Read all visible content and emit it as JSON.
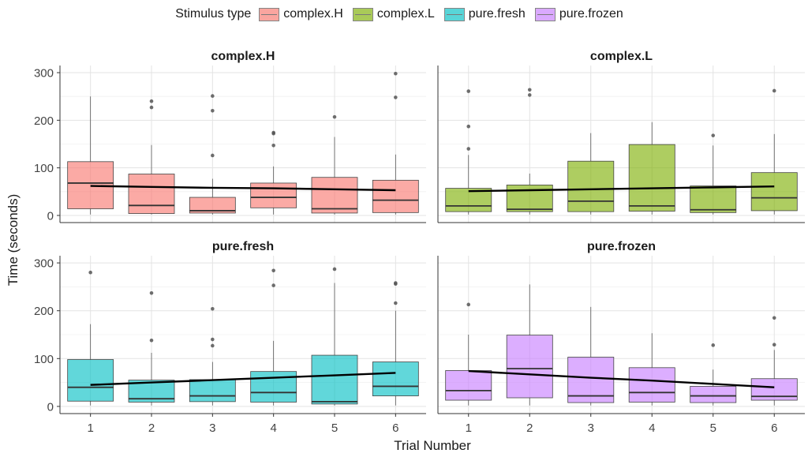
{
  "chart_data": {
    "type": "boxplot",
    "xlabel": "Trial Number",
    "ylabel": "Time (seconds)",
    "legend": {
      "title": "Stimulus type",
      "position": "top",
      "items": [
        {
          "name": "complex.H",
          "color": "#f8766d"
        },
        {
          "name": "complex.L",
          "color": "#7cae00"
        },
        {
          "name": "pure.fresh",
          "color": "#00bfc4"
        },
        {
          "name": "pure.frozen",
          "color": "#c77cff"
        }
      ]
    },
    "x": [
      1,
      2,
      3,
      4,
      5,
      6
    ],
    "ylim": [
      -15,
      315
    ],
    "yticks": [
      0,
      100,
      200,
      300
    ],
    "grid": true,
    "panels": [
      {
        "title": "complex.H",
        "color": "#f8766d",
        "boxes": [
          {
            "x": 1,
            "q1": 14,
            "median": 68,
            "q3": 113,
            "whisker_low": 2,
            "whisker_high": 250,
            "outliers": []
          },
          {
            "x": 2,
            "q1": 4,
            "median": 21,
            "q3": 87,
            "whisker_low": 2,
            "whisker_high": 148,
            "outliers": [
              227,
              240
            ]
          },
          {
            "x": 3,
            "q1": 5,
            "median": 10,
            "q3": 38,
            "whisker_low": 2,
            "whisker_high": 77,
            "outliers": [
              126,
              220,
              251
            ]
          },
          {
            "x": 4,
            "q1": 16,
            "median": 38,
            "q3": 68,
            "whisker_low": 2,
            "whisker_high": 103,
            "outliers": [
              147,
              172,
              174
            ]
          },
          {
            "x": 5,
            "q1": 5,
            "median": 14,
            "q3": 80,
            "whisker_low": 2,
            "whisker_high": 165,
            "outliers": [
              207
            ]
          },
          {
            "x": 6,
            "q1": 6,
            "median": 32,
            "q3": 74,
            "whisker_low": 2,
            "whisker_high": 128,
            "outliers": [
              248,
              298
            ]
          }
        ],
        "trend": [
          62,
          60,
          58,
          57,
          55,
          53
        ]
      },
      {
        "title": "complex.L",
        "color": "#7cae00",
        "boxes": [
          {
            "x": 1,
            "q1": 8,
            "median": 20,
            "q3": 57,
            "whisker_low": 2,
            "whisker_high": 127,
            "outliers": [
              140,
              187,
              261
            ]
          },
          {
            "x": 2,
            "q1": 8,
            "median": 13,
            "q3": 64,
            "whisker_low": 2,
            "whisker_high": 88,
            "outliers": [
              253,
              264
            ]
          },
          {
            "x": 3,
            "q1": 8,
            "median": 30,
            "q3": 114,
            "whisker_low": 2,
            "whisker_high": 173,
            "outliers": []
          },
          {
            "x": 4,
            "q1": 9,
            "median": 20,
            "q3": 149,
            "whisker_low": 2,
            "whisker_high": 196,
            "outliers": []
          },
          {
            "x": 5,
            "q1": 6,
            "median": 12,
            "q3": 62,
            "whisker_low": 2,
            "whisker_high": 147,
            "outliers": [
              168
            ]
          },
          {
            "x": 6,
            "q1": 10,
            "median": 37,
            "q3": 90,
            "whisker_low": 2,
            "whisker_high": 171,
            "outliers": [
              262
            ]
          }
        ],
        "trend": [
          51,
          53,
          55,
          57,
          59,
          61
        ]
      },
      {
        "title": "pure.fresh",
        "color": "#00bfc4",
        "boxes": [
          {
            "x": 1,
            "q1": 11,
            "median": 40,
            "q3": 98,
            "whisker_low": 2,
            "whisker_high": 172,
            "outliers": [
              280
            ]
          },
          {
            "x": 2,
            "q1": 9,
            "median": 16,
            "q3": 55,
            "whisker_low": 2,
            "whisker_high": 112,
            "outliers": [
              138,
              237
            ]
          },
          {
            "x": 3,
            "q1": 10,
            "median": 22,
            "q3": 56,
            "whisker_low": 2,
            "whisker_high": 93,
            "outliers": [
              127,
              140,
              204
            ]
          },
          {
            "x": 4,
            "q1": 9,
            "median": 29,
            "q3": 73,
            "whisker_low": 2,
            "whisker_high": 137,
            "outliers": [
              253,
              284
            ]
          },
          {
            "x": 5,
            "q1": 5,
            "median": 10,
            "q3": 107,
            "whisker_low": 2,
            "whisker_high": 258,
            "outliers": [
              287
            ]
          },
          {
            "x": 6,
            "q1": 22,
            "median": 42,
            "q3": 93,
            "whisker_low": 2,
            "whisker_high": 200,
            "outliers": [
              216,
              256,
              258
            ]
          }
        ],
        "trend": [
          45,
          50,
          55,
          60,
          65,
          70
        ]
      },
      {
        "title": "pure.frozen",
        "color": "#c77cff",
        "boxes": [
          {
            "x": 1,
            "q1": 13,
            "median": 33,
            "q3": 75,
            "whisker_low": 2,
            "whisker_high": 150,
            "outliers": [
              213
            ]
          },
          {
            "x": 2,
            "q1": 18,
            "median": 79,
            "q3": 149,
            "whisker_low": 2,
            "whisker_high": 255,
            "outliers": []
          },
          {
            "x": 3,
            "q1": 8,
            "median": 22,
            "q3": 103,
            "whisker_low": 2,
            "whisker_high": 208,
            "outliers": []
          },
          {
            "x": 4,
            "q1": 9,
            "median": 29,
            "q3": 81,
            "whisker_low": 2,
            "whisker_high": 153,
            "outliers": []
          },
          {
            "x": 5,
            "q1": 8,
            "median": 22,
            "q3": 42,
            "whisker_low": 2,
            "whisker_high": 77,
            "outliers": [
              128
            ]
          },
          {
            "x": 6,
            "q1": 13,
            "median": 21,
            "q3": 58,
            "whisker_low": 2,
            "whisker_high": 118,
            "outliers": [
              129,
              185
            ]
          }
        ],
        "trend": [
          74,
          67,
          60,
          54,
          47,
          40
        ]
      }
    ]
  }
}
